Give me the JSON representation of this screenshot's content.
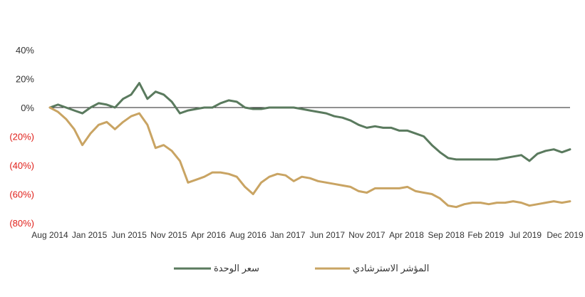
{
  "chart_data": {
    "type": "line",
    "title": "",
    "xlabel": "",
    "ylabel": "",
    "ylim": [
      -80,
      40
    ],
    "y_ticks": [
      {
        "value": 40,
        "label": "40%",
        "color": "#333333"
      },
      {
        "value": 20,
        "label": "20%",
        "color": "#333333"
      },
      {
        "value": 0,
        "label": "0%",
        "color": "#333333"
      },
      {
        "value": -20,
        "label": "(20%)",
        "color": "#e0201b"
      },
      {
        "value": -40,
        "label": "(40%)",
        "color": "#e0201b"
      },
      {
        "value": -60,
        "label": "(60%)",
        "color": "#e0201b"
      },
      {
        "value": -80,
        "label": "(80%)",
        "color": "#e0201b"
      }
    ],
    "x_ticks": [
      "Aug 2014",
      "Jan 2015",
      "Jun 2015",
      "Nov 2015",
      "Apr 2016",
      "Aug 2016",
      "Jan 2017",
      "Jun 2017",
      "Nov 2017",
      "Apr 2018",
      "Sep 2018",
      "Feb 2019",
      "Jul 2019",
      "Dec 2019"
    ],
    "x_range": [
      "2014-08",
      "2019-12"
    ],
    "zero_line": true,
    "grid": false,
    "legend_position": "bottom",
    "series": [
      {
        "name": "سعر الوحدة",
        "color": "#5a7a5e",
        "points": [
          [
            "2014-08",
            0
          ],
          [
            "2014-09",
            2
          ],
          [
            "2014-10",
            0
          ],
          [
            "2014-11",
            -2
          ],
          [
            "2014-12",
            -4
          ],
          [
            "2015-01",
            0
          ],
          [
            "2015-02",
            3
          ],
          [
            "2015-03",
            2
          ],
          [
            "2015-04",
            0
          ],
          [
            "2015-05",
            6
          ],
          [
            "2015-06",
            9
          ],
          [
            "2015-07",
            17
          ],
          [
            "2015-08",
            6
          ],
          [
            "2015-09",
            11
          ],
          [
            "2015-10",
            9
          ],
          [
            "2015-11",
            4
          ],
          [
            "2015-12",
            -4
          ],
          [
            "2016-01",
            -2
          ],
          [
            "2016-02",
            -1
          ],
          [
            "2016-03",
            0
          ],
          [
            "2016-04",
            0
          ],
          [
            "2016-05",
            3
          ],
          [
            "2016-06",
            5
          ],
          [
            "2016-07",
            4
          ],
          [
            "2016-08",
            0
          ],
          [
            "2016-09",
            -1
          ],
          [
            "2016-10",
            -1
          ],
          [
            "2016-11",
            0
          ],
          [
            "2016-12",
            0
          ],
          [
            "2017-01",
            0
          ],
          [
            "2017-02",
            0
          ],
          [
            "2017-03",
            -1
          ],
          [
            "2017-04",
            -2
          ],
          [
            "2017-05",
            -3
          ],
          [
            "2017-06",
            -4
          ],
          [
            "2017-07",
            -6
          ],
          [
            "2017-08",
            -7
          ],
          [
            "2017-09",
            -9
          ],
          [
            "2017-10",
            -12
          ],
          [
            "2017-11",
            -14
          ],
          [
            "2017-12",
            -13
          ],
          [
            "2018-01",
            -14
          ],
          [
            "2018-02",
            -14
          ],
          [
            "2018-03",
            -16
          ],
          [
            "2018-04",
            -16
          ],
          [
            "2018-05",
            -18
          ],
          [
            "2018-06",
            -20
          ],
          [
            "2018-07",
            -26
          ],
          [
            "2018-08",
            -31
          ],
          [
            "2018-09",
            -35
          ],
          [
            "2018-10",
            -36
          ],
          [
            "2018-11",
            -36
          ],
          [
            "2018-12",
            -36
          ],
          [
            "2019-01",
            -36
          ],
          [
            "2019-02",
            -36
          ],
          [
            "2019-03",
            -36
          ],
          [
            "2019-04",
            -35
          ],
          [
            "2019-05",
            -34
          ],
          [
            "2019-06",
            -33
          ],
          [
            "2019-07",
            -37
          ],
          [
            "2019-08",
            -32
          ],
          [
            "2019-09",
            -30
          ],
          [
            "2019-10",
            -29
          ],
          [
            "2019-11",
            -31
          ],
          [
            "2019-12",
            -29
          ]
        ]
      },
      {
        "name": "المؤشر الاسترشادي",
        "color": "#c9a463",
        "points": [
          [
            "2014-08",
            0
          ],
          [
            "2014-09",
            -3
          ],
          [
            "2014-10",
            -8
          ],
          [
            "2014-11",
            -15
          ],
          [
            "2014-12",
            -26
          ],
          [
            "2015-01",
            -18
          ],
          [
            "2015-02",
            -12
          ],
          [
            "2015-03",
            -10
          ],
          [
            "2015-04",
            -15
          ],
          [
            "2015-05",
            -10
          ],
          [
            "2015-06",
            -6
          ],
          [
            "2015-07",
            -4
          ],
          [
            "2015-08",
            -12
          ],
          [
            "2015-09",
            -28
          ],
          [
            "2015-10",
            -26
          ],
          [
            "2015-11",
            -30
          ],
          [
            "2015-12",
            -37
          ],
          [
            "2016-01",
            -52
          ],
          [
            "2016-02",
            -50
          ],
          [
            "2016-03",
            -48
          ],
          [
            "2016-04",
            -45
          ],
          [
            "2016-05",
            -45
          ],
          [
            "2016-06",
            -46
          ],
          [
            "2016-07",
            -48
          ],
          [
            "2016-08",
            -55
          ],
          [
            "2016-09",
            -60
          ],
          [
            "2016-10",
            -52
          ],
          [
            "2016-11",
            -48
          ],
          [
            "2016-12",
            -46
          ],
          [
            "2017-01",
            -47
          ],
          [
            "2017-02",
            -51
          ],
          [
            "2017-03",
            -48
          ],
          [
            "2017-04",
            -49
          ],
          [
            "2017-05",
            -51
          ],
          [
            "2017-06",
            -52
          ],
          [
            "2017-07",
            -53
          ],
          [
            "2017-08",
            -54
          ],
          [
            "2017-09",
            -55
          ],
          [
            "2017-10",
            -58
          ],
          [
            "2017-11",
            -59
          ],
          [
            "2017-12",
            -56
          ],
          [
            "2018-01",
            -56
          ],
          [
            "2018-02",
            -56
          ],
          [
            "2018-03",
            -56
          ],
          [
            "2018-04",
            -55
          ],
          [
            "2018-05",
            -58
          ],
          [
            "2018-06",
            -59
          ],
          [
            "2018-07",
            -60
          ],
          [
            "2018-08",
            -63
          ],
          [
            "2018-09",
            -68
          ],
          [
            "2018-10",
            -69
          ],
          [
            "2018-11",
            -67
          ],
          [
            "2018-12",
            -66
          ],
          [
            "2019-01",
            -66
          ],
          [
            "2019-02",
            -67
          ],
          [
            "2019-03",
            -66
          ],
          [
            "2019-04",
            -66
          ],
          [
            "2019-05",
            -65
          ],
          [
            "2019-06",
            -66
          ],
          [
            "2019-07",
            -68
          ],
          [
            "2019-08",
            -67
          ],
          [
            "2019-09",
            -66
          ],
          [
            "2019-10",
            -65
          ],
          [
            "2019-11",
            -66
          ],
          [
            "2019-12",
            -65
          ]
        ]
      }
    ]
  }
}
